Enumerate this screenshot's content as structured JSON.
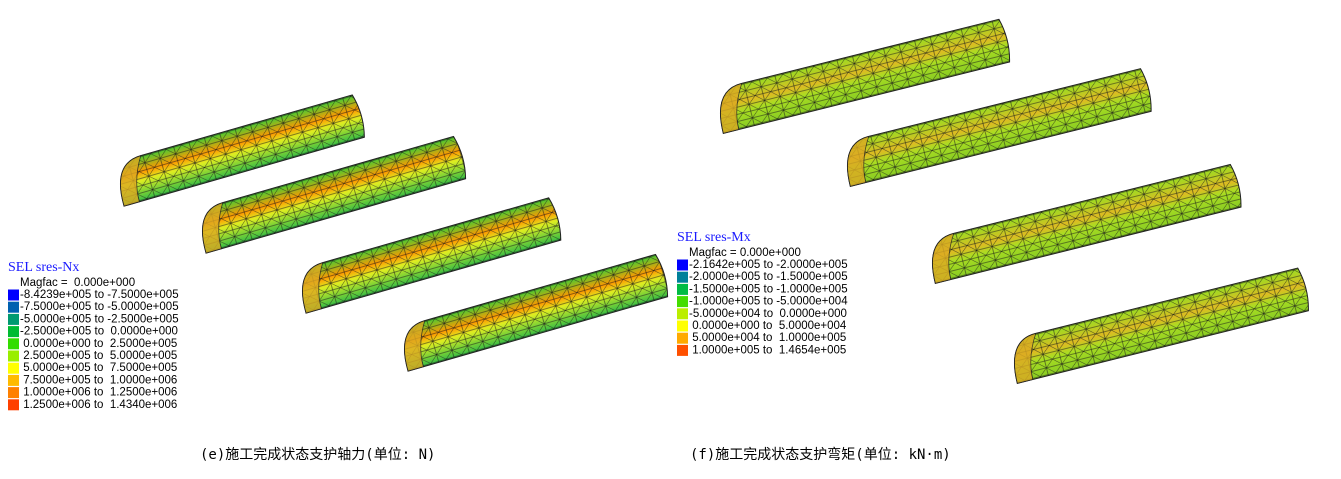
{
  "panels": [
    {
      "legend": {
        "title": "SEL sres-Nx",
        "magfac": "Magfac =  0.000e+000",
        "items": [
          {
            "label": "-8.4239e+005 to -7.5000e+005",
            "color": "#0000ff"
          },
          {
            "label": "-7.5000e+005 to -5.0000e+005",
            "color": "#0060b0"
          },
          {
            "label": "-5.0000e+005 to -2.5000e+005",
            "color": "#009a70"
          },
          {
            "label": "-2.5000e+005 to  0.0000e+000",
            "color": "#00bb33"
          },
          {
            "label": " 0.0000e+000 to  2.5000e+005",
            "color": "#33dd00"
          },
          {
            "label": " 2.5000e+005 to  5.0000e+005",
            "color": "#99ee00"
          },
          {
            "label": " 5.0000e+005 to  7.5000e+005",
            "color": "#ffff00"
          },
          {
            "label": " 7.5000e+005 to  1.0000e+006",
            "color": "#ffbb00"
          },
          {
            "label": " 1.0000e+006 to  1.2500e+006",
            "color": "#ff8000"
          },
          {
            "label": " 1.2500e+006 to  1.4340e+006",
            "color": "#ff4000"
          }
        ]
      },
      "caption": "(e)施工完成状态支护轴力(单位: N)"
    },
    {
      "legend": {
        "title": "SEL sres-Mx",
        "magfac": "Magfac = 0.000e+000",
        "items": [
          {
            "label": "-2.1642e+005 to -2.0000e+005",
            "color": "#0000ff"
          },
          {
            "label": "-2.0000e+005 to -1.5000e+005",
            "color": "#00809a"
          },
          {
            "label": "-1.5000e+005 to -1.0000e+005",
            "color": "#00bb44"
          },
          {
            "label": "-1.0000e+005 to -5.0000e+004",
            "color": "#44dd00"
          },
          {
            "label": "-5.0000e+004 to  0.0000e+000",
            "color": "#bbee00"
          },
          {
            "label": " 0.0000e+000 to  5.0000e+004",
            "color": "#ffff00"
          },
          {
            "label": " 5.0000e+004 to  1.0000e+005",
            "color": "#ffaa00"
          },
          {
            "label": " 1.0000e+005 to  1.4654e+005",
            "color": "#ff5000"
          }
        ]
      },
      "caption": "(f)施工完成状态支护弯矩(单位: kN·m)"
    }
  ]
}
